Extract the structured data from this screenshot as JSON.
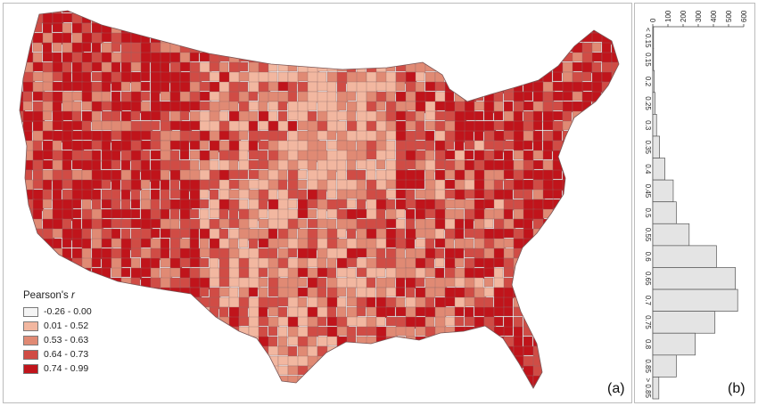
{
  "map": {
    "panel_label": "(a)",
    "legend": {
      "title_prefix": "Pearson's",
      "title_var": "r",
      "classes": [
        {
          "label": "-0.26 - 0.00",
          "color": "#f4f4f4"
        },
        {
          "label": "0.01 - 0.52",
          "color": "#f2b7a0"
        },
        {
          "label": "0.53 - 0.63",
          "color": "#e08a74"
        },
        {
          "label": "0.64 - 0.73",
          "color": "#d04c45"
        },
        {
          "label": "0.74 - 0.99",
          "color": "#c0141b"
        }
      ]
    },
    "boundary_color": "#8f6a6a"
  },
  "histogram": {
    "panel_label": "(b)",
    "bar_color": "#e4e4e4",
    "bar_edge": "#555555"
  },
  "chart_data": {
    "type": "bar",
    "orientation": "horizontal",
    "categories": [
      "< 0.15",
      "0.15",
      "0.2",
      "0.25",
      "0.3",
      "0.35",
      "0.4",
      "0.45",
      "0.5",
      "0.55",
      "0.6",
      "0.65",
      "0.7",
      "0.75",
      "0.8",
      "0.85",
      "> 0.85"
    ],
    "values": [
      5,
      5,
      10,
      15,
      25,
      45,
      80,
      135,
      155,
      240,
      420,
      545,
      560,
      410,
      280,
      155,
      40
    ],
    "x_ticks": [
      0,
      100,
      200,
      300,
      400,
      500,
      600
    ],
    "xlim": [
      0,
      600
    ]
  }
}
